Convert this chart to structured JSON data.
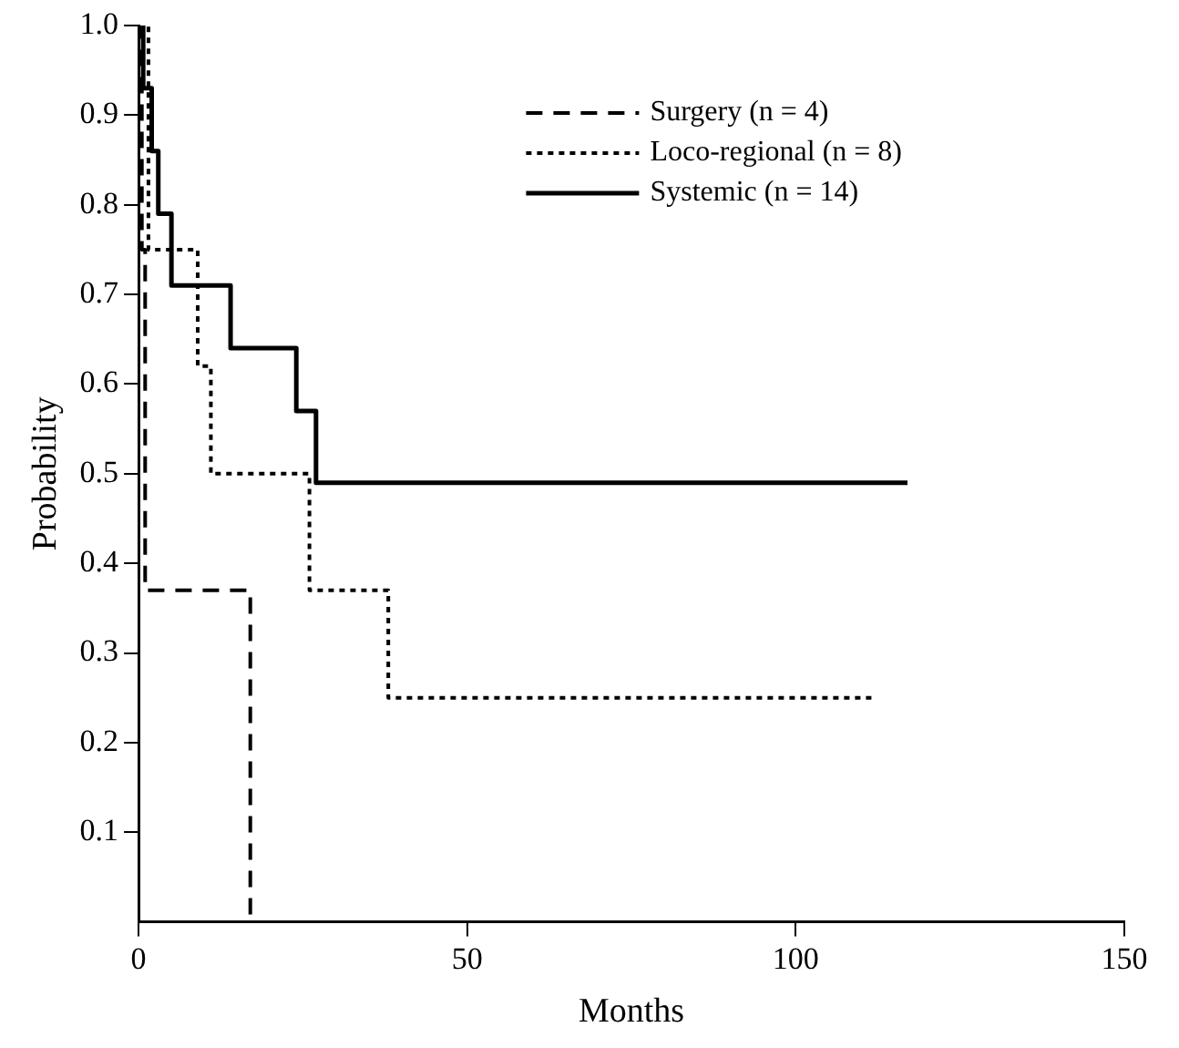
{
  "chart_data": {
    "type": "step",
    "xlabel": "Months",
    "ylabel": "Probability",
    "xlim": [
      0,
      150
    ],
    "xticks": [
      0,
      50,
      100,
      150
    ],
    "ylim": [
      0,
      1
    ],
    "yticks": [
      {
        "value": 0.1,
        "label": "0.1"
      },
      {
        "value": 0.2,
        "label": "0.2"
      },
      {
        "value": 0.3,
        "label": "0.3"
      },
      {
        "value": 0.4,
        "label": "0.4"
      },
      {
        "value": 0.5,
        "label": "0.5"
      },
      {
        "value": 0.6,
        "label": "0.6"
      },
      {
        "value": 0.7,
        "label": "0.7"
      },
      {
        "value": 0.8,
        "label": "0.8"
      },
      {
        "value": 0.9,
        "label": "0.9"
      },
      {
        "value": 1,
        "label": "1.0"
      }
    ],
    "grid": false,
    "legend": "top right",
    "marker": "none",
    "series": [
      {
        "name": "Surgery (n = 4)",
        "color": "#000000",
        "line_style": "dashed",
        "x": [
          0,
          0.5,
          1,
          17
        ],
        "values": [
          1,
          0.75,
          0.37,
          0
        ]
      },
      {
        "name": "Loco-regional (n = 8)",
        "color": "#000000",
        "line_style": "dotted",
        "x": [
          0,
          1.5,
          9,
          11,
          26,
          38,
          112
        ],
        "values": [
          1,
          0.75,
          0.62,
          0.5,
          0.37,
          0.25,
          0.25
        ]
      },
      {
        "name": "Systemic (n = 14)",
        "color": "#000000",
        "line_style": "solid",
        "x": [
          0,
          0.7,
          2,
          3,
          5,
          14,
          24,
          27,
          117
        ],
        "values": [
          1,
          0.93,
          0.86,
          0.79,
          0.71,
          0.64,
          0.57,
          0.49,
          0.49
        ]
      }
    ]
  }
}
